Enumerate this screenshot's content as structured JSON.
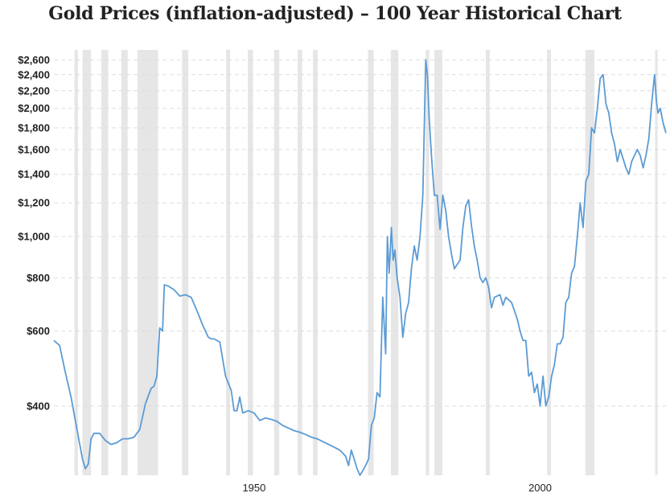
{
  "chart_data": {
    "type": "line",
    "title": "Gold Prices (inflation-adjusted) – 100 Year Historical Chart",
    "xlabel": "",
    "ylabel": "",
    "yscale": "log",
    "xlim": [
      1915,
      2022
    ],
    "ylim": [
      275,
      2650
    ],
    "y_ticks": [
      {
        "value": 400,
        "label": "$400"
      },
      {
        "value": 600,
        "label": "$600"
      },
      {
        "value": 800,
        "label": "$800"
      },
      {
        "value": 1000,
        "label": "$1,000"
      },
      {
        "value": 1200,
        "label": "$1,200"
      },
      {
        "value": 1400,
        "label": "$1,400"
      },
      {
        "value": 1600,
        "label": "$1,600"
      },
      {
        "value": 1800,
        "label": "$1,800"
      },
      {
        "value": 2000,
        "label": "$2,000"
      },
      {
        "value": 2200,
        "label": "$2,200"
      },
      {
        "value": 2400,
        "label": "$2,400"
      },
      {
        "value": 2600,
        "label": "$2,600"
      }
    ],
    "x_ticks": [
      {
        "value": 1950,
        "label": "1950"
      },
      {
        "value": 2000,
        "label": "2000"
      }
    ],
    "recessions": [
      [
        1918.6,
        1919.2
      ],
      [
        1920.0,
        1921.5
      ],
      [
        1923.3,
        1924.5
      ],
      [
        1926.8,
        1927.9
      ],
      [
        1929.6,
        1933.2
      ],
      [
        1937.4,
        1938.5
      ],
      [
        1945.1,
        1945.8
      ],
      [
        1948.9,
        1949.8
      ],
      [
        1953.5,
        1954.4
      ],
      [
        1957.6,
        1958.4
      ],
      [
        1960.3,
        1961.1
      ],
      [
        1969.9,
        1970.9
      ],
      [
        1973.9,
        1975.2
      ],
      [
        1980.0,
        1980.6
      ],
      [
        1981.5,
        1982.9
      ],
      [
        1990.5,
        1991.2
      ],
      [
        2001.2,
        2001.9
      ],
      [
        2007.9,
        2009.5
      ],
      [
        2020.1,
        2020.4
      ]
    ],
    "series": [
      {
        "name": "Gold price (inflation-adjusted)",
        "color": "#5b9bd5",
        "x": [
          1915.0,
          1916.0,
          1917.0,
          1918.0,
          1919.0,
          1920.0,
          1920.5,
          1921.0,
          1921.5,
          1922.0,
          1923.0,
          1924.0,
          1925.0,
          1926.0,
          1927.0,
          1928.0,
          1929.0,
          1930.0,
          1931.0,
          1932.0,
          1932.5,
          1933.0,
          1933.5,
          1934.0,
          1934.3,
          1935.0,
          1936.0,
          1937.0,
          1938.0,
          1939.0,
          1940.0,
          1941.0,
          1942.0,
          1942.5,
          1943.0,
          1944.0,
          1945.0,
          1946.0,
          1946.5,
          1947.0,
          1947.5,
          1948.0,
          1949.0,
          1950.0,
          1951.0,
          1952.0,
          1953.0,
          1954.0,
          1955.0,
          1956.0,
          1957.0,
          1958.0,
          1959.0,
          1960.0,
          1961.0,
          1962.0,
          1963.0,
          1964.0,
          1965.0,
          1966.0,
          1966.5,
          1967.0,
          1967.5,
          1968.0,
          1968.5,
          1969.0,
          1969.5,
          1970.0,
          1970.5,
          1971.0,
          1971.5,
          1972.0,
          1972.5,
          1973.0,
          1973.3,
          1973.6,
          1974.0,
          1974.3,
          1974.6,
          1975.0,
          1975.5,
          1976.0,
          1976.5,
          1977.0,
          1977.5,
          1978.0,
          1978.5,
          1979.0,
          1979.5,
          1980.0,
          1980.3,
          1980.6,
          1981.0,
          1981.5,
          1982.0,
          1982.5,
          1983.0,
          1983.5,
          1984.0,
          1984.5,
          1985.0,
          1985.5,
          1986.0,
          1986.5,
          1987.0,
          1987.5,
          1988.0,
          1988.5,
          1989.0,
          1989.5,
          1990.0,
          1990.5,
          1991.0,
          1991.5,
          1992.0,
          1993.0,
          1993.5,
          1994.0,
          1995.0,
          1996.0,
          1996.5,
          1997.0,
          1997.5,
          1998.0,
          1998.5,
          1999.0,
          1999.5,
          2000.0,
          2000.5,
          2001.0,
          2001.5,
          2002.0,
          2002.5,
          2003.0,
          2003.5,
          2004.0,
          2004.5,
          2005.0,
          2005.5,
          2006.0,
          2006.5,
          2007.0,
          2007.5,
          2008.0,
          2008.5,
          2009.0,
          2009.5,
          2010.0,
          2010.5,
          2011.0,
          2011.5,
          2012.0,
          2012.5,
          2013.0,
          2013.5,
          2014.0,
          2015.0,
          2015.5,
          2016.0,
          2016.5,
          2017.0,
          2017.5,
          2018.0,
          2018.5,
          2019.0,
          2019.5,
          2020.0,
          2020.3,
          2020.6,
          2021.0,
          2021.5,
          2022.0
        ],
        "y": [
          570,
          555,
          480,
          420,
          355,
          300,
          285,
          292,
          335,
          345,
          345,
          332,
          325,
          328,
          335,
          335,
          338,
          352,
          405,
          440,
          445,
          470,
          610,
          600,
          770,
          765,
          750,
          725,
          730,
          720,
          670,
          620,
          580,
          575,
          575,
          565,
          470,
          435,
          390,
          390,
          420,
          385,
          390,
          385,
          370,
          375,
          372,
          368,
          360,
          355,
          350,
          347,
          343,
          338,
          335,
          330,
          325,
          320,
          315,
          305,
          290,
          315,
          300,
          285,
          275,
          282,
          290,
          300,
          360,
          375,
          430,
          420,
          720,
          530,
          1000,
          820,
          1050,
          880,
          930,
          800,
          720,
          580,
          660,
          700,
          840,
          950,
          880,
          1000,
          1250,
          2600,
          2400,
          1900,
          1550,
          1250,
          1250,
          1040,
          1250,
          1150,
          1000,
          910,
          840,
          860,
          880,
          1050,
          1180,
          1220,
          1060,
          950,
          880,
          800,
          780,
          800,
          760,
          680,
          720,
          730,
          690,
          720,
          700,
          640,
          600,
          570,
          570,
          470,
          480,
          430,
          450,
          400,
          470,
          400,
          420,
          470,
          500,
          560,
          560,
          580,
          700,
          720,
          820,
          850,
          1000,
          1200,
          1050,
          1350,
          1400,
          1800,
          1750,
          2000,
          2350,
          2400,
          2050,
          1950,
          1750,
          1650,
          1500,
          1600,
          1450,
          1400,
          1500,
          1550,
          1600,
          1550,
          1450,
          1550,
          1700,
          2050,
          2400,
          2100,
          1950,
          2000,
          1850,
          1750
        ]
      }
    ]
  }
}
